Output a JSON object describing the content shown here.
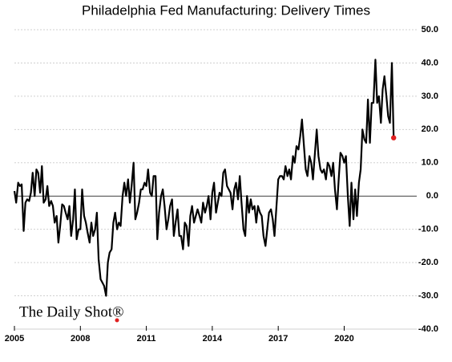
{
  "chart_data": {
    "type": "line",
    "title": "Philadelphia Fed Manufacturing: Delivery Times",
    "watermark": "The Daily Shot®",
    "x": [
      2005,
      2005.08,
      2005.17,
      2005.25,
      2005.33,
      2005.42,
      2005.5,
      2005.58,
      2005.67,
      2005.75,
      2005.83,
      2005.92,
      2006,
      2006.08,
      2006.17,
      2006.25,
      2006.33,
      2006.42,
      2006.5,
      2006.58,
      2006.67,
      2006.75,
      2006.83,
      2006.92,
      2007,
      2007.08,
      2007.17,
      2007.25,
      2007.33,
      2007.42,
      2007.5,
      2007.58,
      2007.67,
      2007.75,
      2007.83,
      2007.92,
      2008,
      2008.08,
      2008.17,
      2008.25,
      2008.33,
      2008.42,
      2008.5,
      2008.58,
      2008.67,
      2008.75,
      2008.83,
      2008.92,
      2009,
      2009.08,
      2009.17,
      2009.25,
      2009.33,
      2009.42,
      2009.5,
      2009.58,
      2009.67,
      2009.75,
      2009.83,
      2009.92,
      2010,
      2010.08,
      2010.17,
      2010.25,
      2010.33,
      2010.42,
      2010.5,
      2010.58,
      2010.67,
      2010.75,
      2010.83,
      2010.92,
      2011,
      2011.08,
      2011.17,
      2011.25,
      2011.33,
      2011.42,
      2011.5,
      2011.58,
      2011.67,
      2011.75,
      2011.83,
      2011.92,
      2012,
      2012.08,
      2012.17,
      2012.25,
      2012.33,
      2012.42,
      2012.5,
      2012.58,
      2012.67,
      2012.75,
      2012.83,
      2012.92,
      2013,
      2013.08,
      2013.17,
      2013.25,
      2013.33,
      2013.42,
      2013.5,
      2013.58,
      2013.67,
      2013.75,
      2013.83,
      2013.92,
      2014,
      2014.08,
      2014.17,
      2014.25,
      2014.33,
      2014.42,
      2014.5,
      2014.58,
      2014.67,
      2014.75,
      2014.83,
      2014.92,
      2015,
      2015.08,
      2015.17,
      2015.25,
      2015.33,
      2015.42,
      2015.5,
      2015.58,
      2015.67,
      2015.75,
      2015.83,
      2015.92,
      2016,
      2016.08,
      2016.17,
      2016.25,
      2016.33,
      2016.42,
      2016.5,
      2016.58,
      2016.67,
      2016.75,
      2016.83,
      2016.92,
      2017,
      2017.08,
      2017.17,
      2017.25,
      2017.33,
      2017.42,
      2017.5,
      2017.58,
      2017.67,
      2017.75,
      2017.83,
      2017.92,
      2018,
      2018.08,
      2018.17,
      2018.25,
      2018.33,
      2018.42,
      2018.5,
      2018.58,
      2018.67,
      2018.75,
      2018.83,
      2018.92,
      2019,
      2019.08,
      2019.17,
      2019.25,
      2019.33,
      2019.42,
      2019.5,
      2019.58,
      2019.67,
      2019.75,
      2019.83,
      2019.92,
      2020,
      2020.08,
      2020.17,
      2020.25,
      2020.33,
      2020.42,
      2020.5,
      2020.58,
      2020.67,
      2020.75,
      2020.83,
      2020.92,
      2021,
      2021.08,
      2021.17,
      2021.25,
      2021.33,
      2021.42,
      2021.5,
      2021.58,
      2021.67,
      2021.75,
      2021.83,
      2021.92,
      2022,
      2022.08,
      2022.17,
      2022.25
    ],
    "series": [
      {
        "color": "#000000",
        "last_point_color": "#e02020",
        "values": [
          1.5,
          -2,
          4,
          3,
          3.5,
          -10.5,
          -2,
          -1,
          -1.5,
          1,
          7,
          0,
          8,
          7,
          1,
          9,
          -2,
          -1,
          3,
          -3,
          -1.5,
          -3,
          -8,
          -6,
          -14,
          -9,
          -2.5,
          -3,
          -5,
          -7,
          -3,
          -12,
          -7,
          2,
          -13,
          -10,
          -10,
          2,
          -6,
          -8,
          -11,
          -14,
          -8,
          -12,
          -10,
          -5,
          -19,
          -25,
          -26,
          -27,
          -30,
          -20,
          -17,
          -16,
          -8,
          -5,
          -10,
          -8,
          -9,
          0,
          4,
          0,
          5,
          -2,
          3,
          10,
          -7,
          -5,
          -2,
          2,
          2,
          4,
          3,
          8,
          1,
          0,
          6,
          6,
          -13,
          -5,
          0,
          2,
          -3,
          -10,
          -7,
          -3,
          -1,
          -12,
          -8,
          -4,
          -12,
          -12,
          -16,
          -8,
          -9,
          -15,
          -6,
          -3,
          -8,
          -6,
          -4,
          -6,
          -8,
          -2,
          -5,
          -3,
          0,
          -7,
          1,
          4,
          -5,
          -2,
          1,
          0,
          7,
          8,
          3,
          2,
          1,
          -4,
          2,
          4,
          -1,
          6,
          -2,
          -10,
          -12,
          0,
          -5,
          -1,
          -4,
          -3,
          -8,
          -3,
          -5,
          -6,
          -12,
          -15,
          -10,
          -5,
          -4,
          -7,
          -12,
          -3,
          5,
          6,
          6,
          5,
          9,
          6,
          8,
          5,
          12,
          10,
          15,
          14,
          18,
          23,
          15,
          8,
          6,
          12,
          10,
          5,
          13,
          20,
          12,
          8,
          7,
          8,
          5,
          10,
          9,
          6,
          10,
          2,
          -4,
          5,
          13,
          12,
          10,
          12,
          -0.5,
          -9,
          4,
          -7,
          2,
          -6,
          4,
          8,
          20,
          17,
          16,
          29,
          16,
          28,
          28,
          41,
          28,
          30,
          22,
          32,
          36,
          30,
          24,
          22,
          40,
          17.5
        ]
      }
    ],
    "xlim": [
      2005,
      2023.3
    ],
    "xticks": [
      2005,
      2008,
      2011,
      2014,
      2017,
      2020
    ],
    "ylim": [
      -40,
      50
    ],
    "yticks": [
      {
        "value": -40,
        "label": "-40.0"
      },
      {
        "value": -30,
        "label": "-30.0"
      },
      {
        "value": -20,
        "label": "-20.0"
      },
      {
        "value": -10,
        "label": "-10.0"
      },
      {
        "value": 0,
        "label": "0.0"
      },
      {
        "value": 10,
        "label": "10.0"
      },
      {
        "value": 20,
        "label": "20.0"
      },
      {
        "value": 30,
        "label": "30.0"
      },
      {
        "value": 40,
        "label": "40.0"
      },
      {
        "value": 50,
        "label": "50.0"
      }
    ],
    "grid": true
  }
}
